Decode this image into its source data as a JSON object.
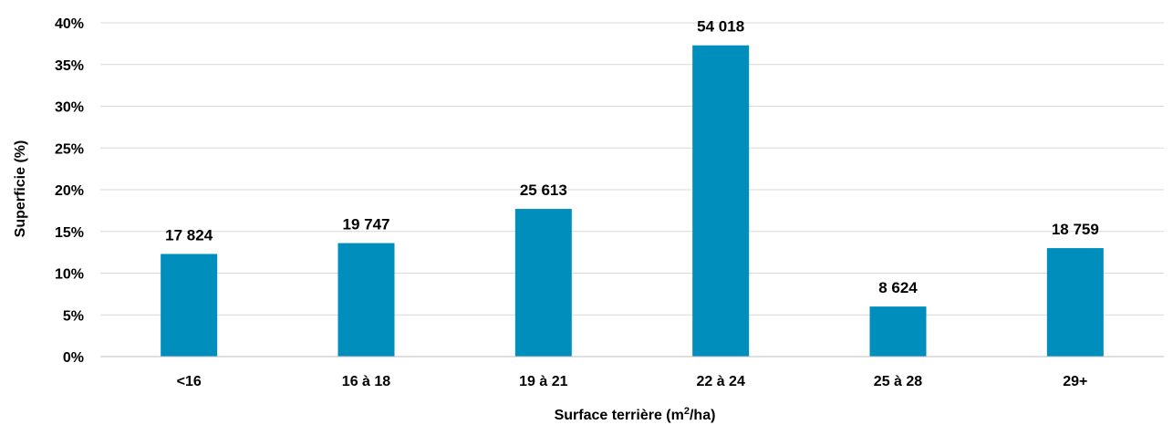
{
  "chart_data": {
    "type": "bar",
    "categories": [
      "<16",
      "16 à 18",
      "19 à 21",
      "22 à 24",
      "25 à 28",
      "29+"
    ],
    "values": [
      12.3,
      13.6,
      17.7,
      37.3,
      6.0,
      13.0
    ],
    "data_labels": [
      "17 824",
      "19 747",
      "25 613",
      "54 018",
      "8 624",
      "18 759"
    ],
    "ylabel": "Superficie (%)",
    "xlabel_main": "Surface terrière (m",
    "xlabel_sup": "2",
    "xlabel_tail": "/ha)",
    "ylim": [
      0,
      40
    ],
    "yticks": [
      0,
      5,
      10,
      15,
      20,
      25,
      30,
      35,
      40
    ],
    "ytick_labels": [
      "0%",
      "5%",
      "10%",
      "15%",
      "20%",
      "25%",
      "30%",
      "35%",
      "40%"
    ],
    "grid": true,
    "bar_color": "#008fbd",
    "legend": "none"
  }
}
